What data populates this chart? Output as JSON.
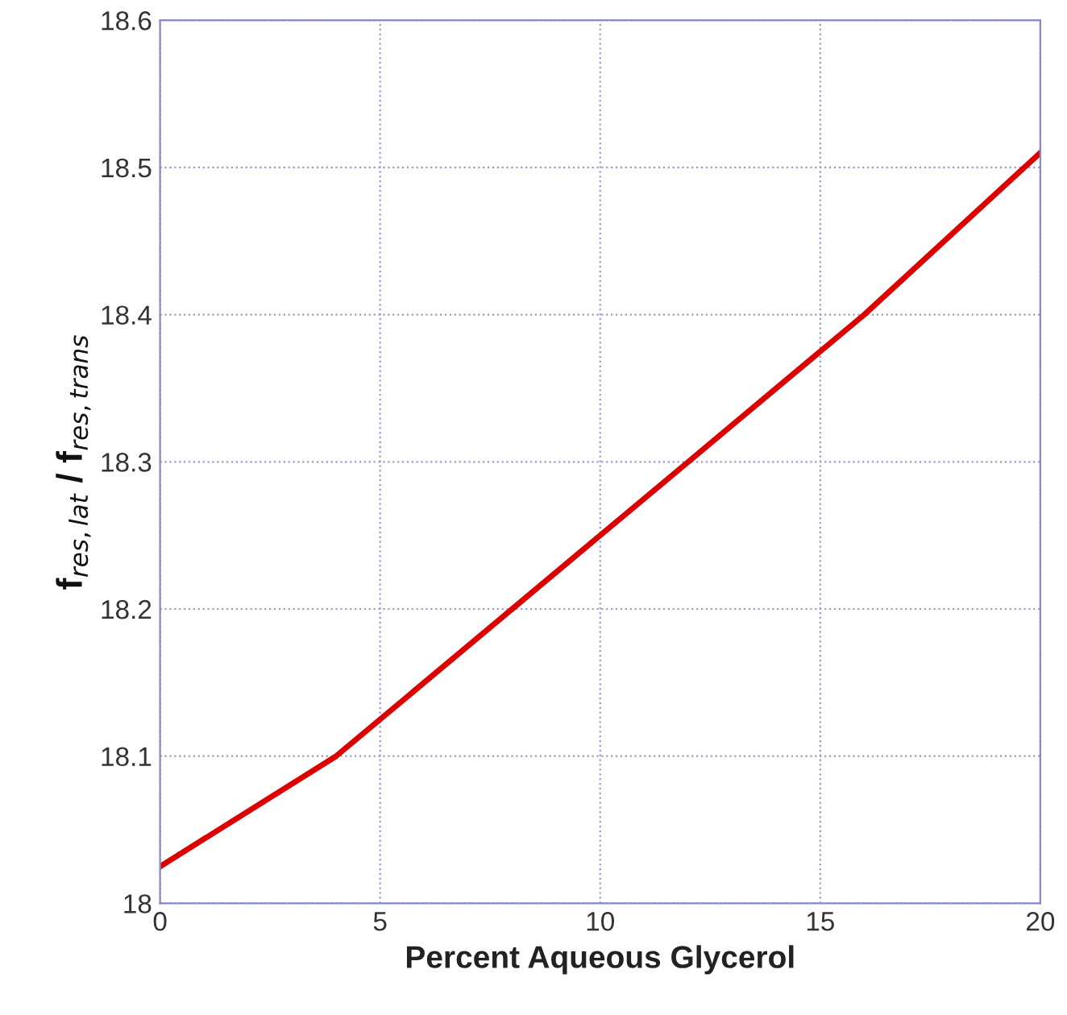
{
  "chart_data": {
    "type": "line",
    "xlabel": "Percent Aqueous Glycerol",
    "ylabel": "f$_{res,lat}$ / f$_{res,trans}$",
    "x": [
      0,
      4,
      8,
      12,
      16,
      20
    ],
    "series": [
      {
        "color": "#dd0000",
        "values": [
          18.025,
          18.1,
          18.2,
          18.3,
          18.4,
          18.51
        ]
      }
    ],
    "xlim": [
      0,
      20
    ],
    "xticks": [
      0,
      5,
      10,
      15,
      20
    ],
    "ylim": [
      18,
      18.6
    ],
    "yticks": [
      18,
      18.1,
      18.2,
      18.3,
      18.4,
      18.5,
      18.6
    ],
    "grid": true,
    "marker": "none",
    "line_style": "solid"
  }
}
